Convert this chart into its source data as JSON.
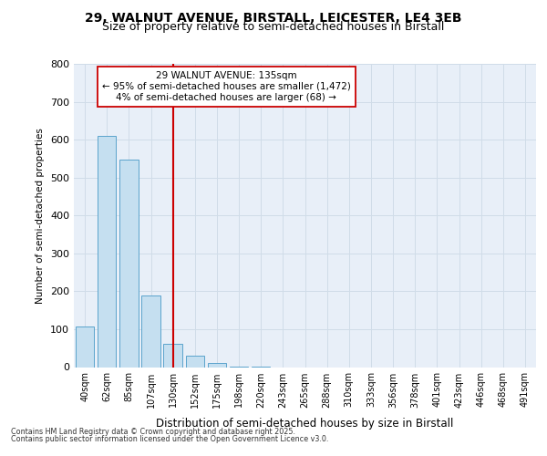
{
  "title_line1": "29, WALNUT AVENUE, BIRSTALL, LEICESTER, LE4 3EB",
  "title_line2": "Size of property relative to semi-detached houses in Birstall",
  "xlabel": "Distribution of semi-detached houses by size in Birstall",
  "ylabel": "Number of semi-detached properties",
  "annotation_line1": "29 WALNUT AVENUE: 135sqm",
  "annotation_line2": "← 95% of semi-detached houses are smaller (1,472)",
  "annotation_line3": "4% of semi-detached houses are larger (68) →",
  "categories": [
    "40sqm",
    "62sqm",
    "85sqm",
    "107sqm",
    "130sqm",
    "152sqm",
    "175sqm",
    "198sqm",
    "220sqm",
    "243sqm",
    "265sqm",
    "288sqm",
    "310sqm",
    "333sqm",
    "356sqm",
    "378sqm",
    "401sqm",
    "423sqm",
    "446sqm",
    "468sqm",
    "491sqm"
  ],
  "values": [
    108,
    610,
    548,
    188,
    62,
    30,
    10,
    2,
    1,
    0,
    0,
    0,
    0,
    0,
    0,
    0,
    0,
    0,
    0,
    0,
    0
  ],
  "bar_color": "#c5dff0",
  "bar_edge_color": "#5ba3cc",
  "red_line_index": 4,
  "red_line_color": "#cc0000",
  "annotation_box_edge_color": "#cc0000",
  "annotation_box_face_color": "#ffffff",
  "ylim": [
    0,
    800
  ],
  "yticks": [
    0,
    100,
    200,
    300,
    400,
    500,
    600,
    700,
    800
  ],
  "grid_color": "#d0dce8",
  "fig_bg_color": "#ffffff",
  "plot_bg_color": "#e8eff8",
  "title_fontsize": 10,
  "subtitle_fontsize": 9,
  "footnote1": "Contains HM Land Registry data © Crown copyright and database right 2025.",
  "footnote2": "Contains public sector information licensed under the Open Government Licence v3.0."
}
